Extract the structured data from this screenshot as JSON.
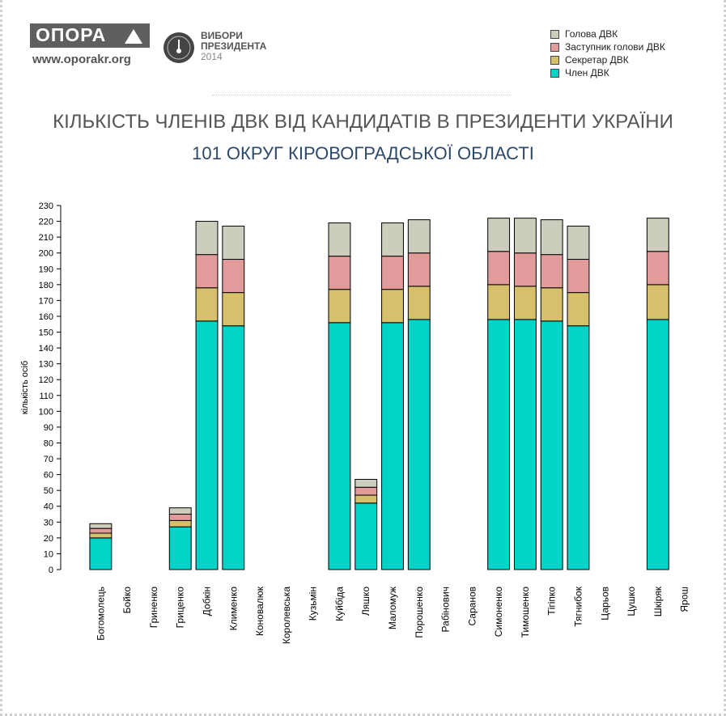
{
  "header": {
    "logo_name": "ОПОРА",
    "website": "www.oporakr.org",
    "election_line1": "ВИБОРИ",
    "election_line2": "ПРЕЗИДЕНТА",
    "election_year": "2014"
  },
  "title": "КІЛЬКІСТЬ ЧЛЕНІВ ДВК ВІД КАНДИДАТІВ В ПРЕЗИДЕНТИ УКРАЇНИ",
  "subtitle": "101 ОКРУГ КІРОВОГРАДСЬКОЇ ОБЛАСТІ",
  "legend": [
    {
      "label": "Голова ДВК",
      "color": "#cdcdbe"
    },
    {
      "label": "Заступник голови ДВК",
      "color": "#e19b9b"
    },
    {
      "label": "Секретар ДВК",
      "color": "#d6c06c"
    },
    {
      "label": "Член ДВК",
      "color": "#00d3c8"
    }
  ],
  "chart_data": {
    "type": "bar",
    "stacked": true,
    "ylabel": "кількість осіб",
    "ylim": [
      0,
      230
    ],
    "ytick_step": 10,
    "categories": [
      "Богомолець",
      "Бойко",
      "Гриненко",
      "Гриценко",
      "Добкін",
      "Клименко",
      "Коновалюк",
      "Королевська",
      "Кузьмін",
      "Куйбіда",
      "Ляшко",
      "Маломуж",
      "Порошенко",
      "Рабінович",
      "Саранов",
      "Симоненко",
      "Тимошенко",
      "Тігіпко",
      "Тягнибок",
      "Царьов",
      "Цушко",
      "Шкіряк",
      "Ярош"
    ],
    "series": [
      {
        "name": "Член ДВК",
        "color": "#00d3c8",
        "values": [
          20,
          0,
          0,
          27,
          157,
          154,
          0,
          0,
          0,
          156,
          42,
          156,
          158,
          0,
          0,
          158,
          158,
          157,
          154,
          0,
          0,
          158,
          0
        ]
      },
      {
        "name": "Секретар ДВК",
        "color": "#d6c06c",
        "values": [
          3,
          0,
          0,
          4,
          21,
          21,
          0,
          0,
          0,
          21,
          5,
          21,
          21,
          0,
          0,
          22,
          21,
          21,
          21,
          0,
          0,
          22,
          0
        ]
      },
      {
        "name": "Заступник голови ДВК",
        "color": "#e19b9b",
        "values": [
          3,
          0,
          0,
          4,
          21,
          21,
          0,
          0,
          0,
          21,
          5,
          21,
          21,
          0,
          0,
          21,
          21,
          21,
          21,
          0,
          0,
          21,
          0
        ]
      },
      {
        "name": "Голова ДВК",
        "color": "#cdcdbe",
        "values": [
          3,
          0,
          0,
          4,
          21,
          21,
          0,
          0,
          0,
          21,
          5,
          21,
          21,
          0,
          0,
          21,
          22,
          22,
          21,
          0,
          0,
          21,
          0
        ]
      }
    ]
  }
}
